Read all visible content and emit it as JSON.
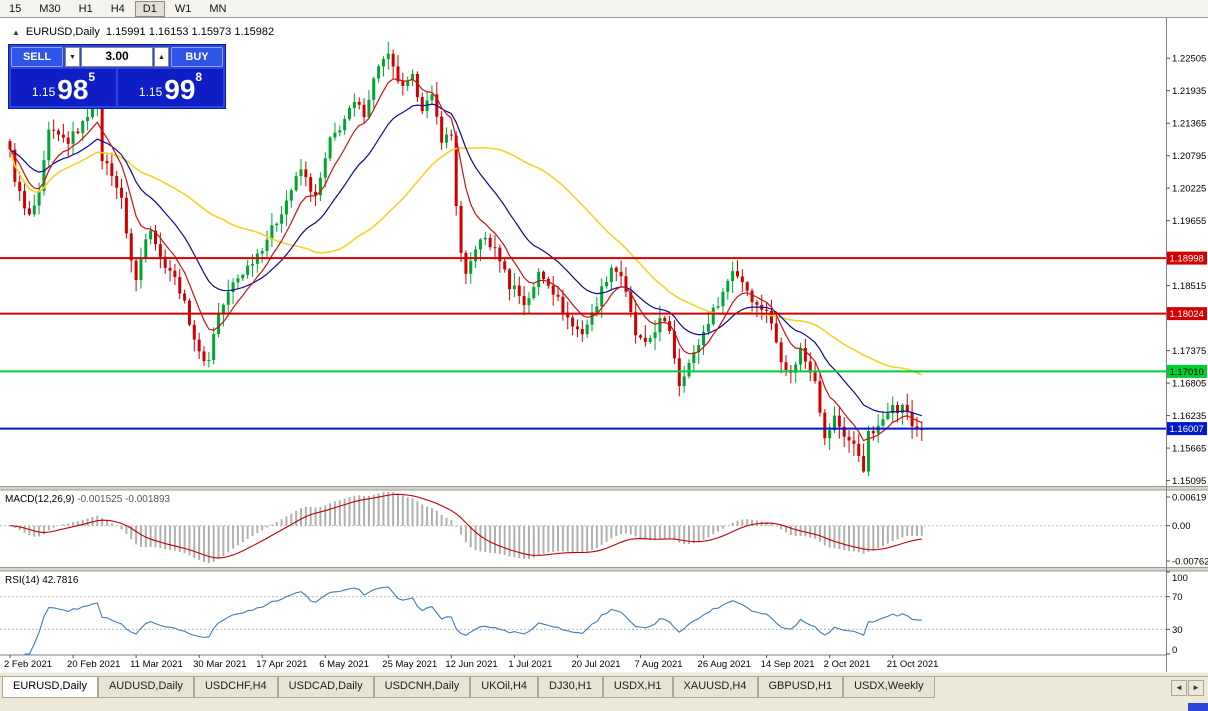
{
  "toolbar": {
    "timeframes": [
      {
        "label": "15",
        "active": false
      },
      {
        "label": "M30",
        "active": false
      },
      {
        "label": "H1",
        "active": false
      },
      {
        "label": "H4",
        "active": false
      },
      {
        "label": "D1",
        "active": true
      },
      {
        "label": "W1",
        "active": false
      },
      {
        "label": "MN",
        "active": false
      }
    ]
  },
  "chart_header": {
    "icon": "▲",
    "symbol": "EURUSD,Daily",
    "ohlc": "1.15991 1.16153 1.15973 1.15982"
  },
  "trade_widget": {
    "sell_label": "SELL",
    "buy_label": "BUY",
    "volume": "3.00",
    "dec_arrow": "▼",
    "inc_arrow": "▲",
    "sell_price": {
      "base": "1.15",
      "big": "98",
      "pip": "5"
    },
    "buy_price": {
      "base": "1.15",
      "big": "99",
      "pip": "8"
    }
  },
  "price_axis": {
    "ticks": [
      {
        "label": "1.22505",
        "value": 1.22505
      },
      {
        "label": "1.21935",
        "value": 1.21935
      },
      {
        "label": "1.21365",
        "value": 1.21365
      },
      {
        "label": "1.20795",
        "value": 1.20795
      },
      {
        "label": "1.20225",
        "value": 1.20225
      },
      {
        "label": "1.19655",
        "value": 1.19655
      },
      {
        "label": "1.18515",
        "value": 1.18515
      },
      {
        "label": "1.17375",
        "value": 1.17375
      },
      {
        "label": "1.16805",
        "value": 1.16805
      },
      {
        "label": "1.16235",
        "value": 1.16235
      },
      {
        "label": "1.15665",
        "value": 1.15665
      },
      {
        "label": "1.15095",
        "value": 1.15095
      }
    ],
    "badges": [
      {
        "label": "1.18998",
        "value": 1.18998,
        "color": "#d40000",
        "text_color": "#ffffff"
      },
      {
        "label": "1.18024",
        "value": 1.18024,
        "color": "#d40000",
        "text_color": "#ffffff"
      },
      {
        "label": "1.17010",
        "value": 1.1701,
        "color": "#00ce32",
        "text_color": "#000000"
      },
      {
        "label": "1.16007",
        "value": 1.16007,
        "color": "#0019cc",
        "text_color": "#ffffff"
      }
    ]
  },
  "indicators": {
    "macd": {
      "label": "MACD(12,26,9)",
      "values": "-0.001525 -0.001893",
      "axis": [
        {
          "label": "0.00619",
          "value": 0.00619
        },
        {
          "label": "0.00",
          "value": 0
        },
        {
          "label": "-0.00762",
          "value": -0.00762
        }
      ]
    },
    "rsi": {
      "label": "RSI(14)",
      "value": "42.7816",
      "axis": [
        {
          "label": "100",
          "value": 100
        },
        {
          "label": "70",
          "value": 70
        },
        {
          "label": "30",
          "value": 30
        },
        {
          "label": "0",
          "value": 0
        }
      ],
      "levels": [
        70,
        30
      ]
    }
  },
  "tabs": [
    {
      "label": "EURUSD,Daily",
      "active": true
    },
    {
      "label": "AUDUSD,Daily",
      "active": false
    },
    {
      "label": "USDCHF,H4",
      "active": false
    },
    {
      "label": "USDCAD,Daily",
      "active": false
    },
    {
      "label": "USDCNH,Daily",
      "active": false
    },
    {
      "label": "UKOil,H4",
      "active": false
    },
    {
      "label": "DJ30,H1",
      "active": false
    },
    {
      "label": "USDX,H1",
      "active": false
    },
    {
      "label": "XAUUSD,H4",
      "active": false
    },
    {
      "label": "GBPUSD,H1",
      "active": false
    },
    {
      "label": "USDX,Weekly",
      "active": false
    }
  ],
  "tab_scroll": {
    "left": "◄",
    "right": "►"
  },
  "colors": {
    "up": "#00a431",
    "down": "#d10000",
    "ma_fast": "#cc1111",
    "ma_mid": "#0a0a96",
    "ma_slow": "#f5d327",
    "macd_hist": "#b0b0b0",
    "macd_signal": "#c00000",
    "rsi_line": "#3e7cbf",
    "grid_dash": "#bbbbbb",
    "axis_line": "#808080",
    "separator": "#d8d4c8",
    "connection": "#2b46d8"
  },
  "chart_data": [
    {
      "type": "candlestick",
      "symbol": "EURUSD",
      "timeframe": "Daily",
      "ohlc_current": {
        "open": 1.15991,
        "high": 1.16153,
        "low": 1.15973,
        "close": 1.15982
      },
      "ylim": [
        1.15,
        1.23
      ],
      "num_candles": 189,
      "last_close": 1.15982,
      "hlines": [
        1.18998,
        1.18024,
        1.1701,
        1.16007
      ],
      "moving_averages": [
        {
          "name": "fast",
          "method": "ema",
          "period": 8
        },
        {
          "name": "mid",
          "method": "ema",
          "period": 20
        },
        {
          "name": "slow",
          "method": "sma",
          "period": 45
        }
      ],
      "x_date_labels": [
        [
          0,
          "2 Feb 2021"
        ],
        [
          13,
          "20 Feb 2021"
        ],
        [
          26,
          "11 Mar 2021"
        ],
        [
          39,
          "30 Mar 2021"
        ],
        [
          52,
          "17 Apr 2021"
        ],
        [
          65,
          "6 May 2021"
        ],
        [
          78,
          "25 May 2021"
        ],
        [
          91,
          "12 Jun 2021"
        ],
        [
          104,
          "1 Jul 2021"
        ],
        [
          117,
          "20 Jul 2021"
        ],
        [
          130,
          "7 Aug 2021"
        ],
        [
          143,
          "26 Aug 2021"
        ],
        [
          156,
          "14 Sep 2021"
        ],
        [
          169,
          "2 Oct 2021"
        ],
        [
          182,
          "21 Oct 2021"
        ]
      ],
      "close_path": [
        [
          0,
          1.2085
        ],
        [
          1,
          1.204
        ],
        [
          3,
          1.1985
        ],
        [
          4,
          1.1972
        ],
        [
          6,
          1.201
        ],
        [
          8,
          1.212
        ],
        [
          12,
          1.2105
        ],
        [
          15,
          1.2135
        ],
        [
          17,
          1.217
        ],
        [
          18,
          1.2165
        ],
        [
          19,
          1.2075
        ],
        [
          21,
          1.205
        ],
        [
          23,
          1.2
        ],
        [
          25,
          1.1895
        ],
        [
          26,
          1.186
        ],
        [
          28,
          1.194
        ],
        [
          29,
          1.1955
        ],
        [
          31,
          1.19
        ],
        [
          33,
          1.188
        ],
        [
          35,
          1.1845
        ],
        [
          37,
          1.179
        ],
        [
          39,
          1.173
        ],
        [
          40,
          1.1725
        ],
        [
          41,
          1.172
        ],
        [
          42,
          1.177
        ],
        [
          43,
          1.18
        ],
        [
          46,
          1.1855
        ],
        [
          49,
          1.1885
        ],
        [
          52,
          1.192
        ],
        [
          55,
          1.1965
        ],
        [
          58,
          1.202
        ],
        [
          60,
          1.2055
        ],
        [
          63,
          1.2005
        ],
        [
          66,
          1.2105
        ],
        [
          68,
          1.213
        ],
        [
          71,
          1.217
        ],
        [
          73,
          1.2155
        ],
        [
          76,
          1.224
        ],
        [
          78,
          1.2252
        ],
        [
          79,
          1.223
        ],
        [
          81,
          1.2195
        ],
        [
          83,
          1.2215
        ],
        [
          85,
          1.2165
        ],
        [
          87,
          1.218
        ],
        [
          89,
          1.211
        ],
        [
          91,
          1.2115
        ],
        [
          92,
          1.1995
        ],
        [
          93,
          1.1905
        ],
        [
          94,
          1.1865
        ],
        [
          96,
          1.192
        ],
        [
          98,
          1.1935
        ],
        [
          101,
          1.19
        ],
        [
          103,
          1.1852
        ],
        [
          104,
          1.185
        ],
        [
          106,
          1.182
        ],
        [
          108,
          1.1845
        ],
        [
          109,
          1.1875
        ],
        [
          111,
          1.1858
        ],
        [
          114,
          1.181
        ],
        [
          116,
          1.178
        ],
        [
          118,
          1.177
        ],
        [
          120,
          1.18
        ],
        [
          122,
          1.1845
        ],
        [
          124,
          1.1885
        ],
        [
          126,
          1.187
        ],
        [
          129,
          1.1765
        ],
        [
          131,
          1.1745
        ],
        [
          134,
          1.179
        ],
        [
          136,
          1.1775
        ],
        [
          138,
          1.168
        ],
        [
          139,
          1.17
        ],
        [
          141,
          1.173
        ],
        [
          144,
          1.179
        ],
        [
          147,
          1.184
        ],
        [
          149,
          1.188
        ],
        [
          151,
          1.186
        ],
        [
          154,
          1.1815
        ],
        [
          156,
          1.181
        ],
        [
          159,
          1.1725
        ],
        [
          161,
          1.1695
        ],
        [
          163,
          1.174
        ],
        [
          164,
          1.172
        ],
        [
          166,
          1.169
        ],
        [
          168,
          1.158
        ],
        [
          169,
          1.16
        ],
        [
          170,
          1.162
        ],
        [
          172,
          1.159
        ],
        [
          174,
          1.157
        ],
        [
          175,
          1.1555
        ],
        [
          176,
          1.1532
        ],
        [
          177,
          1.159
        ],
        [
          179,
          1.16
        ],
        [
          181,
          1.1635
        ],
        [
          182,
          1.165
        ],
        [
          183,
          1.1625
        ],
        [
          184,
          1.1645
        ],
        [
          186,
          1.1605
        ],
        [
          188,
          1.15982
        ]
      ]
    },
    {
      "type": "macd_histogram",
      "label": "MACD(12,26,9)",
      "fast": 12,
      "slow": 26,
      "signal": 9,
      "current_values": [
        -0.001525,
        -0.001893
      ],
      "ylim": [
        -0.00762,
        0.00619
      ]
    },
    {
      "type": "rsi_line",
      "label": "RSI(14)",
      "period": 14,
      "current_value": 42.7816,
      "ylim": [
        0,
        100
      ],
      "levels": [
        70,
        30
      ]
    }
  ]
}
